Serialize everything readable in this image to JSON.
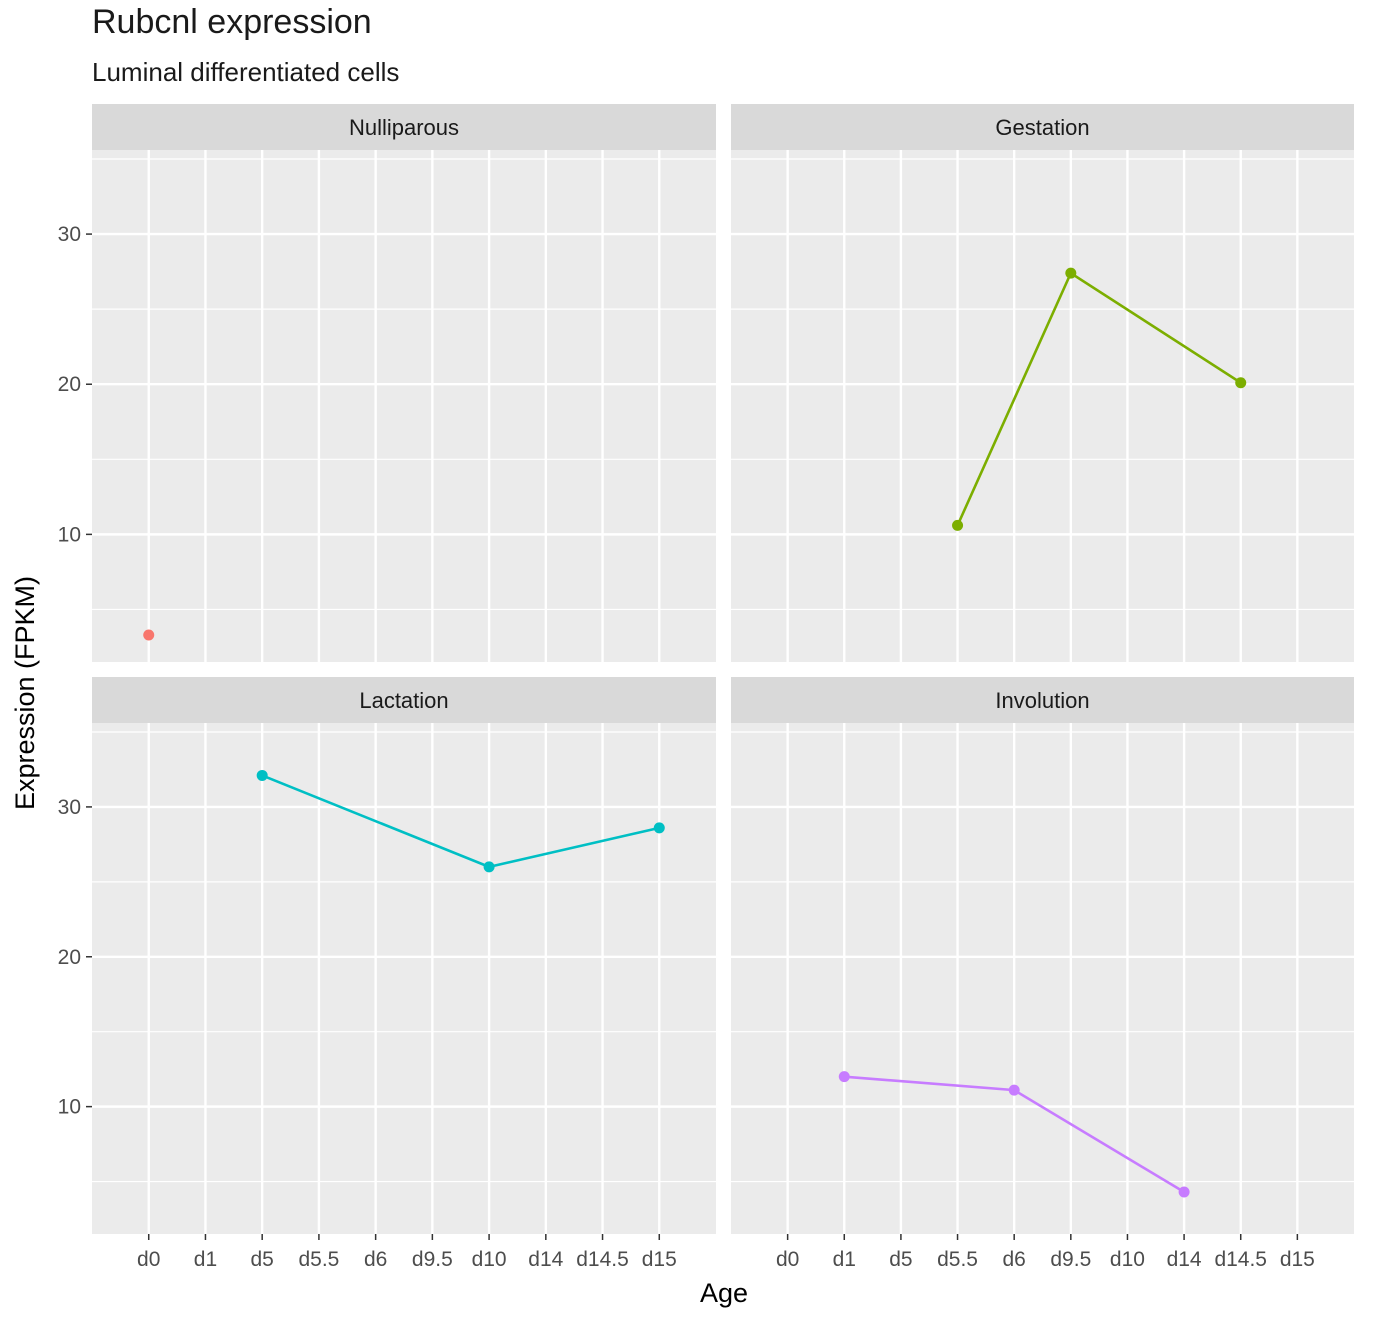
{
  "chart_data": {
    "type": "line",
    "title": "Rubcnl expression",
    "subtitle": "Luminal differentiated cells",
    "xlabel": "Age",
    "ylabel": "Expression (FPKM)",
    "categories": [
      "d0",
      "d1",
      "d5",
      "d5.5",
      "d6",
      "d9.5",
      "d10",
      "d14",
      "d14.5",
      "d15"
    ],
    "ylim": [
      1.5,
      35.6
    ],
    "yticks": [
      10,
      20,
      30
    ],
    "grid": true,
    "legend": "none",
    "facet_layout": "2x2",
    "panels": [
      {
        "name": "Nulliparous",
        "color": "#F8766D",
        "points": [
          {
            "x": "d0",
            "y": 3.3
          }
        ]
      },
      {
        "name": "Gestation",
        "color": "#7CAE00",
        "points": [
          {
            "x": "d5.5",
            "y": 10.6
          },
          {
            "x": "d9.5",
            "y": 27.4
          },
          {
            "x": "d14.5",
            "y": 20.1
          }
        ]
      },
      {
        "name": "Lactation",
        "color": "#00BFC4",
        "points": [
          {
            "x": "d5",
            "y": 32.1
          },
          {
            "x": "d10",
            "y": 26.0
          },
          {
            "x": "d15",
            "y": 28.6
          }
        ]
      },
      {
        "name": "Involution",
        "color": "#C77CFF",
        "points": [
          {
            "x": "d1",
            "y": 12.0
          },
          {
            "x": "d6",
            "y": 11.1
          },
          {
            "x": "d14",
            "y": 4.3
          }
        ]
      }
    ]
  },
  "colors": {
    "panel_background": "#EBEBEB",
    "strip_background": "#D9D9D9",
    "grid": "#FFFFFF"
  }
}
